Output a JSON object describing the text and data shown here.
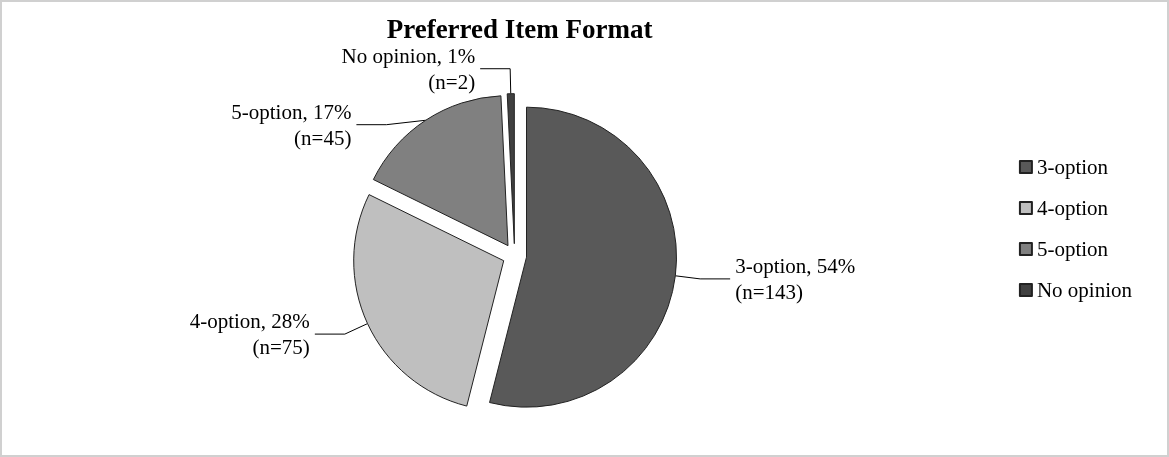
{
  "chart_data": {
    "type": "pie",
    "title": "Preferred Item Format",
    "categories": [
      "3-option",
      "4-option",
      "5-option",
      "No opinion"
    ],
    "values": [
      143,
      75,
      45,
      2
    ],
    "value_labels": [
      ", 54%\n(n=143)",
      ", 28%\n(n=75)",
      ", 17%\n(n=45)",
      ", 1%\n(n=2)"
    ],
    "colors": [
      "#595959",
      "#bfbfbf",
      "#808080",
      "#404040"
    ],
    "legend": "right"
  }
}
